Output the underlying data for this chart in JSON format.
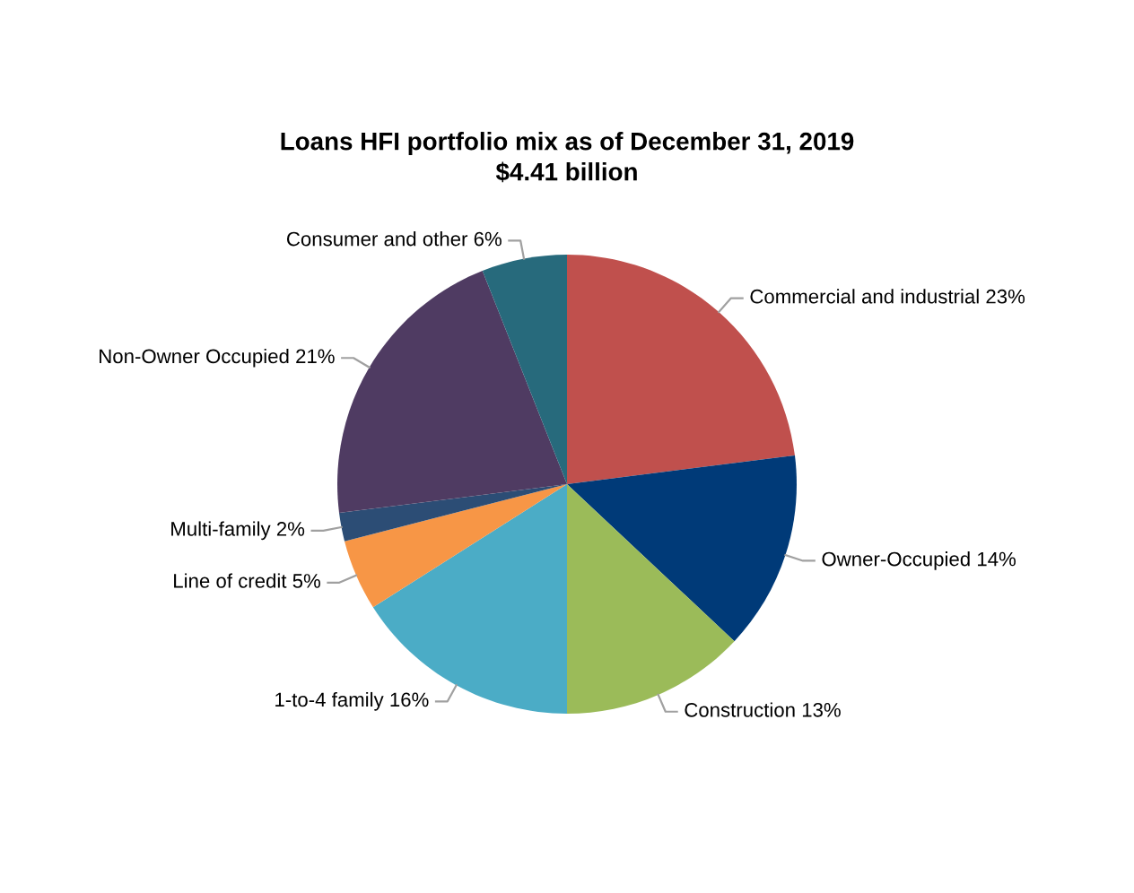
{
  "chart_data": {
    "type": "pie",
    "title": "Loans HFI portfolio mix as of December 31, 2019",
    "subtitle": "$4.41 billion",
    "categories": [
      "Commercial and industrial",
      "Owner-Occupied",
      "Construction",
      "1-to-4 family",
      "Line of credit",
      "Multi-family",
      "Non-Owner Occupied",
      "Consumer and other"
    ],
    "values": [
      23,
      14,
      13,
      16,
      5,
      2,
      21,
      6
    ],
    "value_labels": [
      "23%",
      "14%",
      "13%",
      "16%",
      "5%",
      "2%",
      "21%",
      "6%"
    ],
    "colors": [
      "#c0504d",
      "#003a78",
      "#9bbb59",
      "#4bacc6",
      "#f79646",
      "#2c4d75",
      "#4f3b62",
      "#276a7c"
    ]
  }
}
